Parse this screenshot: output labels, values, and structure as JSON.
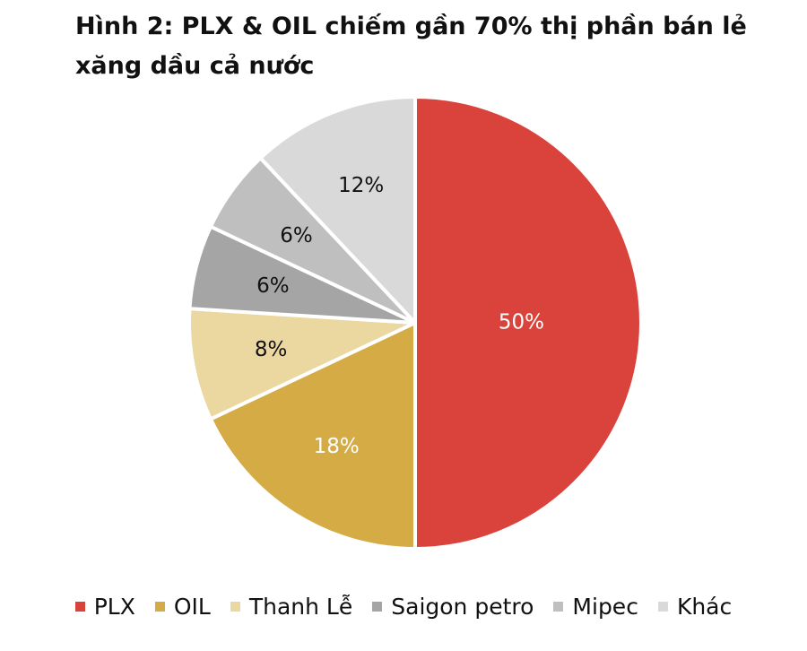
{
  "chart_data": {
    "type": "pie",
    "title": "Hình 2: PLX & OIL chiếm gần 70% thị phần bán lẻ xăng dầu cả nước",
    "categories": [
      "PLX",
      "OIL",
      "Thanh Lễ",
      "Saigon petro",
      "Mipec",
      "Khác"
    ],
    "values": [
      50,
      18,
      8,
      6,
      6,
      12
    ],
    "value_labels": [
      "50%",
      "18%",
      "8%",
      "6%",
      "6%",
      "12%"
    ],
    "colors": [
      "#d9433c",
      "#d4ab45",
      "#ebd7a0",
      "#a5a5a5",
      "#bfbfbf",
      "#d9d9d9"
    ],
    "legend": "bottom"
  }
}
